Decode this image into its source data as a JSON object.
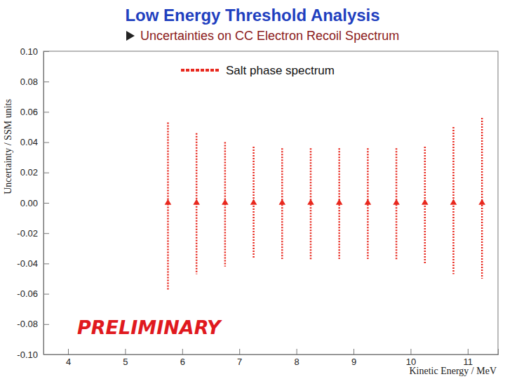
{
  "chart_data": {
    "type": "scatter",
    "title": "Low Energy Threshold Analysis",
    "subtitle": "Uncertainties on CC Electron Recoil Spectrum",
    "x_label": "Kinetic Energy / MeV",
    "y_label": "Uncertainty / SSM units",
    "annotation": "PRELIMINARY",
    "x": [
      5.75,
      6.25,
      6.75,
      7.25,
      7.75,
      8.25,
      8.75,
      9.25,
      9.75,
      10.25,
      10.75,
      11.25
    ],
    "series": [
      {
        "name": "Salt phase spectrum",
        "color": "#e8281e",
        "marker": "triangle",
        "line_style": "dotted",
        "values": [
          0,
          0,
          0,
          0,
          0,
          0,
          0,
          0,
          0,
          0,
          0,
          0
        ],
        "error_plus": [
          0.053,
          0.046,
          0.04,
          0.037,
          0.036,
          0.036,
          0.036,
          0.036,
          0.036,
          0.037,
          0.05,
          0.056
        ],
        "error_minus": [
          0.058,
          0.047,
          0.042,
          0.037,
          0.037,
          0.038,
          0.037,
          0.037,
          0.038,
          0.04,
          0.047,
          0.05
        ]
      }
    ],
    "xlim": [
      3.57,
      11.53
    ],
    "ylim": [
      -0.1,
      0.1
    ],
    "xticks": [
      4,
      5,
      6,
      7,
      8,
      9,
      10,
      11
    ],
    "yticks": [
      {
        "value": 0.1,
        "label": "0.10"
      },
      {
        "value": 0.08,
        "label": "0.08"
      },
      {
        "value": 0.06,
        "label": "0.06"
      },
      {
        "value": 0.04,
        "label": "0.04"
      },
      {
        "value": 0.02,
        "label": "0.02"
      },
      {
        "value": 0,
        "label": "0.00"
      },
      {
        "value": -0.02,
        "label": "-0.02"
      },
      {
        "value": -0.04,
        "label": "-0.04"
      },
      {
        "value": -0.06,
        "label": "-0.06"
      },
      {
        "value": -0.08,
        "label": "-0.08"
      },
      {
        "value": -0.1,
        "label": "-0.10"
      }
    ],
    "legend": "top",
    "grid": false
  }
}
